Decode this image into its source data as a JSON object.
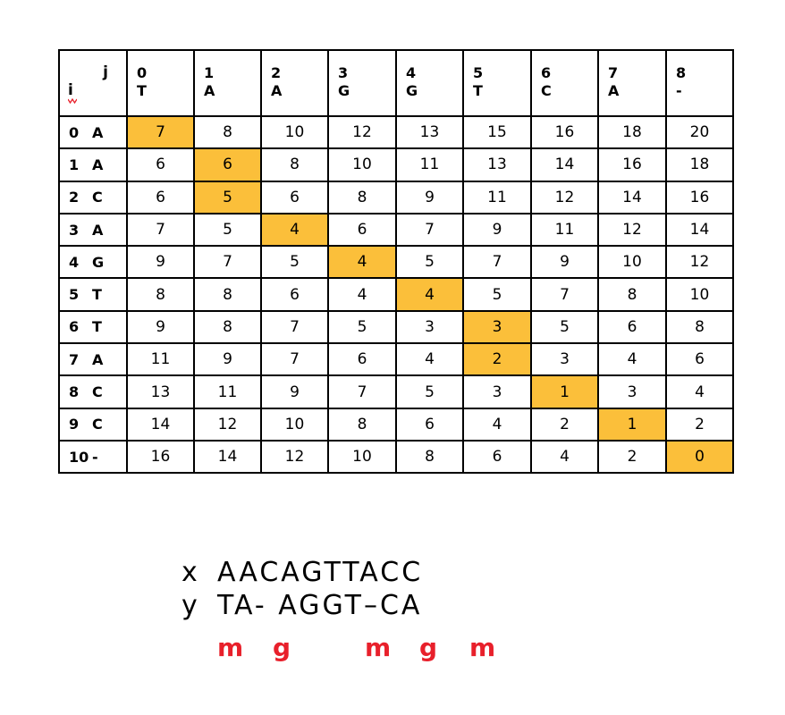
{
  "table": {
    "corner": {
      "j_label": "j",
      "i_label": "i"
    },
    "columns": [
      {
        "index": "0",
        "char": "T"
      },
      {
        "index": "1",
        "char": "A"
      },
      {
        "index": "2",
        "char": "A"
      },
      {
        "index": "3",
        "char": "G"
      },
      {
        "index": "4",
        "char": "G"
      },
      {
        "index": "5",
        "char": "T"
      },
      {
        "index": "6",
        "char": "C"
      },
      {
        "index": "7",
        "char": "A"
      },
      {
        "index": "8",
        "char": "-"
      }
    ],
    "rows": [
      {
        "index": "0",
        "char": "A",
        "values": [
          "7",
          "8",
          "10",
          "12",
          "13",
          "15",
          "16",
          "18",
          "20"
        ],
        "path_col": 0
      },
      {
        "index": "1",
        "char": "A",
        "values": [
          "6",
          "6",
          "8",
          "10",
          "11",
          "13",
          "14",
          "16",
          "18"
        ],
        "path_col": 1
      },
      {
        "index": "2",
        "char": "C",
        "values": [
          "6",
          "5",
          "6",
          "8",
          "9",
          "11",
          "12",
          "14",
          "16"
        ],
        "path_col": 1
      },
      {
        "index": "3",
        "char": "A",
        "values": [
          "7",
          "5",
          "4",
          "6",
          "7",
          "9",
          "11",
          "12",
          "14"
        ],
        "path_col": 2
      },
      {
        "index": "4",
        "char": "G",
        "values": [
          "9",
          "7",
          "5",
          "4",
          "5",
          "7",
          "9",
          "10",
          "12"
        ],
        "path_col": 3
      },
      {
        "index": "5",
        "char": "T",
        "values": [
          "8",
          "8",
          "6",
          "4",
          "4",
          "5",
          "7",
          "8",
          "10"
        ],
        "path_col": 4
      },
      {
        "index": "6",
        "char": "T",
        "values": [
          "9",
          "8",
          "7",
          "5",
          "3",
          "3",
          "5",
          "6",
          "8"
        ],
        "path_col": 5
      },
      {
        "index": "7",
        "char": "A",
        "values": [
          "11",
          "9",
          "7",
          "6",
          "4",
          "2",
          "3",
          "4",
          "6"
        ],
        "path_col": 5
      },
      {
        "index": "8",
        "char": "C",
        "values": [
          "13",
          "11",
          "9",
          "7",
          "5",
          "3",
          "1",
          "3",
          "4"
        ],
        "path_col": 6
      },
      {
        "index": "9",
        "char": "C",
        "values": [
          "14",
          "12",
          "10",
          "8",
          "6",
          "4",
          "2",
          "1",
          "2"
        ],
        "path_col": 7
      },
      {
        "index": "10",
        "char": "-",
        "values": [
          "16",
          "14",
          "12",
          "10",
          "8",
          "6",
          "4",
          "2",
          "0"
        ],
        "path_col": 8
      }
    ],
    "highlight_color": "#fbbf3a"
  },
  "alignment": {
    "x_label": "x",
    "x_seq": "AACAGTTACC",
    "y_label": "y",
    "y_seq": "TA- AGGT–CA",
    "marks": [
      "m",
      "g",
      "m",
      "g",
      "m"
    ],
    "mark_color": "#e8202b"
  }
}
